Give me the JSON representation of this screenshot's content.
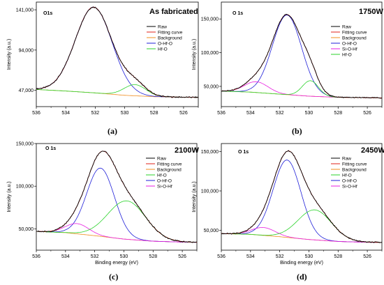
{
  "chart_data": [
    {
      "type": "line",
      "panel_label": "(a)",
      "peak_label": "O1s",
      "title": "As fabricated",
      "xlabel": "",
      "ylabel": "Intensity (a.u.)",
      "xlim": [
        536,
        525
      ],
      "ylim": [
        28000,
        150000
      ],
      "xticks": [
        536,
        534,
        532,
        530,
        528,
        526
      ],
      "yticks": [
        47000,
        94000,
        141000
      ],
      "ytick_labels": [
        "47,000",
        "94,000",
        "141,000"
      ],
      "baseline": {
        "x": [
          536,
          534,
          532,
          530,
          528,
          526,
          525
        ],
        "y": [
          48000,
          46200,
          44000,
          41200,
          39600,
          39000,
          38800
        ]
      },
      "peaks": {
        "O-Hf-O": {
          "center": 532.1,
          "height": 100000,
          "width": 1.25
        },
        "Hf-O": {
          "center": 529.3,
          "height": 13000,
          "width": 0.75
        }
      },
      "series": [
        {
          "name": "Raw",
          "color": "#000000",
          "component": "raw"
        },
        {
          "name": "Fitting curve",
          "color": "#e0201a",
          "component": "fit"
        },
        {
          "name": "Background",
          "color": "#f08c1e",
          "component": "bg"
        },
        {
          "name": "O-Hf-O",
          "color": "#1f1fd8",
          "component": "O-Hf-O"
        },
        {
          "name": "Hf-O",
          "color": "#2ad32a",
          "component": "Hf-O"
        }
      ]
    },
    {
      "type": "line",
      "panel_label": "(b)",
      "peak_label": "O 1s",
      "title": "1750W",
      "xlabel": "",
      "ylabel": "Intensity (a.u.)",
      "xlim": [
        536,
        525
      ],
      "ylim": [
        20000,
        175000
      ],
      "xticks": [
        536,
        534,
        532,
        530,
        528,
        526
      ],
      "yticks": [
        50000,
        100000,
        150000
      ],
      "ytick_labels": [
        "50,000",
        "100,000",
        "150,000"
      ],
      "baseline": {
        "x": [
          536,
          534,
          532,
          530,
          528,
          526,
          525
        ],
        "y": [
          43000,
          41500,
          38500,
          35500,
          33800,
          33200,
          33000
        ]
      },
      "peaks": {
        "O-Hf-O": {
          "center": 531.5,
          "height": 118000,
          "width": 1.0
        },
        "Si-O-Hf": {
          "center": 533.6,
          "height": 16000,
          "width": 0.8
        },
        "Hf-O": {
          "center": 529.9,
          "height": 23000,
          "width": 0.55
        }
      },
      "series": [
        {
          "name": "Raw",
          "color": "#000000",
          "component": "raw"
        },
        {
          "name": "Fitting curve",
          "color": "#e0201a",
          "component": "fit"
        },
        {
          "name": "Background",
          "color": "#f08c1e",
          "component": "bg"
        },
        {
          "name": "O-Hf-O",
          "color": "#1f1fd8",
          "component": "O-Hf-O"
        },
        {
          "name": "Si-O-Hf",
          "color": "#e81ee0",
          "component": "Si-O-Hf"
        },
        {
          "name": "Hf-O",
          "color": "#2ad32a",
          "component": "Hf-O"
        }
      ]
    },
    {
      "type": "line",
      "panel_label": "(c)",
      "peak_label": "O 1s",
      "title": "2100W",
      "xlabel": "Binding energy (eV)",
      "ylabel": "Intensity (a.u.)",
      "xlim": [
        536,
        525
      ],
      "ylim": [
        25000,
        150000
      ],
      "xticks": [
        536,
        534,
        532,
        530,
        528,
        526
      ],
      "yticks": [
        50000,
        100000,
        150000
      ],
      "ytick_labels": [
        "50,000",
        "100,000",
        "150,000"
      ],
      "baseline": {
        "x": [
          536,
          534,
          532,
          530,
          528,
          526,
          525
        ],
        "y": [
          47000,
          45500,
          42000,
          38000,
          35500,
          34500,
          34200
        ]
      },
      "peaks": {
        "O-Hf-O": {
          "center": 531.6,
          "height": 80000,
          "width": 0.95
        },
        "Si-O-Hf": {
          "center": 533.2,
          "height": 12000,
          "width": 0.8
        },
        "Hf-O": {
          "center": 529.8,
          "height": 45000,
          "width": 1.3
        }
      },
      "series": [
        {
          "name": "Raw",
          "color": "#000000",
          "component": "raw"
        },
        {
          "name": "Fitting curve",
          "color": "#e0201a",
          "component": "fit"
        },
        {
          "name": "Background",
          "color": "#f08c1e",
          "component": "bg"
        },
        {
          "name": "Hf-O",
          "color": "#2ad32a",
          "component": "Hf-O"
        },
        {
          "name": "O-Hf-O",
          "color": "#1f1fd8",
          "component": "O-Hf-O"
        },
        {
          "name": "Si-O-Hf",
          "color": "#e81ee0",
          "component": "Si-O-Hf"
        }
      ]
    },
    {
      "type": "line",
      "panel_label": "(d)",
      "peak_label": "O 1s",
      "title": "2450W",
      "xlabel": "Binding energy (eV)",
      "ylabel": "Intensity (a.u.)",
      "xlim": [
        536,
        525
      ],
      "ylim": [
        25000,
        160000
      ],
      "xticks": [
        536,
        534,
        532,
        530,
        528,
        526
      ],
      "yticks": [
        50000,
        100000,
        150000
      ],
      "ytick_labels": [
        "50,000",
        "100,000",
        "150,000"
      ],
      "baseline": {
        "x": [
          536,
          534,
          532,
          530,
          528,
          526,
          525
        ],
        "y": [
          46000,
          45000,
          42000,
          38500,
          36000,
          35000,
          34800
        ]
      },
      "peaks": {
        "O-Hf-O": {
          "center": 531.5,
          "height": 98000,
          "width": 0.95
        },
        "Si-O-Hf": {
          "center": 533.1,
          "height": 10000,
          "width": 0.8
        },
        "Hf-O": {
          "center": 529.6,
          "height": 38000,
          "width": 1.15
        }
      },
      "series": [
        {
          "name": "Raw",
          "color": "#000000",
          "component": "raw"
        },
        {
          "name": "Fitting curve",
          "color": "#e0201a",
          "component": "fit"
        },
        {
          "name": "Background",
          "color": "#f08c1e",
          "component": "bg"
        },
        {
          "name": "Hf-O",
          "color": "#2ad32a",
          "component": "Hf-O"
        },
        {
          "name": "O-Hf-O",
          "color": "#1f1fd8",
          "component": "O-Hf-O"
        },
        {
          "name": "Si-O-Hf",
          "color": "#e81ee0",
          "component": "Si-O-Hf"
        }
      ]
    }
  ]
}
